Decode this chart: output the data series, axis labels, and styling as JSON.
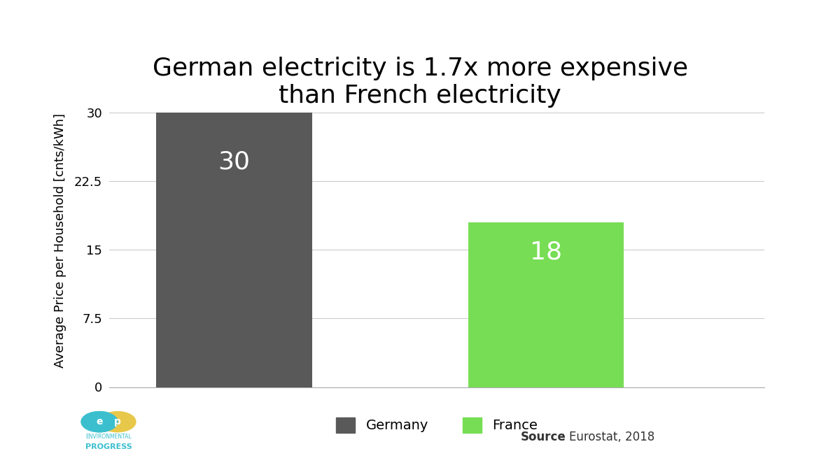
{
  "title": "German electricity is 1.7x more expensive\nthan French electricity",
  "categories": [
    "Germany",
    "France"
  ],
  "values": [
    30,
    18
  ],
  "bar_colors": [
    "#595959",
    "#77dd55"
  ],
  "ylabel": "Average Price per Household [cnts/kWh]",
  "yticks": [
    0,
    7.5,
    15,
    22.5,
    30
  ],
  "ytick_labels": [
    "0",
    "7.5",
    "15",
    "22.5",
    "30"
  ],
  "ylim": [
    0,
    32
  ],
  "bar_labels": [
    "30",
    "18"
  ],
  "bar_label_color": "#ffffff",
  "bar_label_fontsize": 26,
  "title_fontsize": 26,
  "ylabel_fontsize": 13,
  "ytick_fontsize": 13,
  "source_text_bold": "Source",
  "source_text_normal": ": Eurostat, 2018",
  "source_fontsize": 12,
  "background_color": "#ffffff",
  "grid_color": "#cccccc",
  "legend_fontsize": 14
}
